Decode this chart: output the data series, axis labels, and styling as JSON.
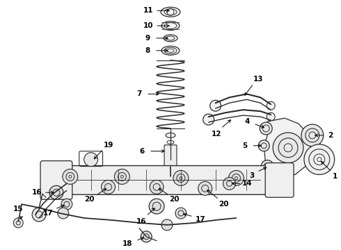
{
  "bg_color": "#ffffff",
  "line_color": "#2a2a2a",
  "text_color": "#000000",
  "fig_w": 4.9,
  "fig_h": 3.6,
  "dpi": 100
}
